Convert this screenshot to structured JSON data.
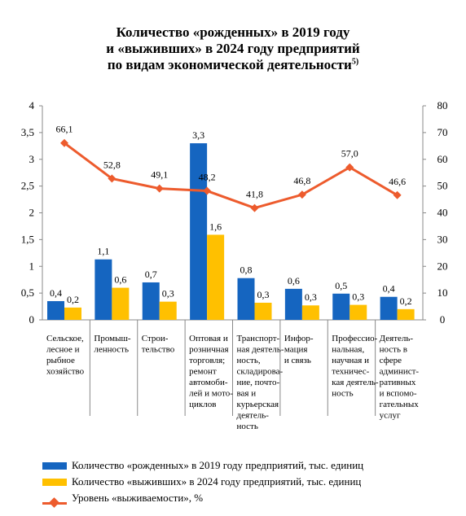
{
  "title": {
    "line1": "Количество «рожденных» в 2019 году",
    "line2": "и «выживших» в 2024 году предприятий",
    "line3": "по видам экономической деятельности",
    "footnote": "5)"
  },
  "chart_data": {
    "type": "bar",
    "categories": [
      [
        "Сельское,",
        "лесное и",
        "рыбное",
        "хозяйство"
      ],
      [
        "Промыш-",
        "ленность"
      ],
      [
        "Строи-",
        "тельство"
      ],
      [
        "Оптовая и",
        "розничная",
        "торговля;",
        "ремонт",
        "автомоби-",
        "лей и мото-",
        "циклов"
      ],
      [
        "Транспорт-",
        "ная деятель-",
        "ность,",
        "складирова-",
        "ние, почто-",
        "вая и",
        "курьерская",
        "деятель-",
        "ность"
      ],
      [
        "Инфор-",
        "мация",
        "и связь"
      ],
      [
        "Профессио-",
        "нальная,",
        "научная и",
        "техничес-",
        "кая деятель-",
        "ность"
      ],
      [
        "Деятель-",
        "ность в",
        "сфере",
        "админист-",
        "ративных",
        "и вспомо-",
        "гательных",
        "услуг"
      ]
    ],
    "series": [
      {
        "name": "Количество «рожденных» в 2019 году предприятий, тыс. единиц",
        "kind": "bar",
        "axis": "left",
        "color": "#1565c0",
        "values": [
          0.35,
          1.13,
          0.7,
          3.3,
          0.78,
          0.58,
          0.49,
          0.43
        ],
        "labels": [
          "0,4",
          "1,1",
          "0,7",
          "3,3",
          "0,8",
          "0,6",
          "0,5",
          "0,4"
        ]
      },
      {
        "name": "Количество «выживших» в 2024 году предприятий, тыс. единиц",
        "kind": "bar",
        "axis": "left",
        "color": "#ffc000",
        "values": [
          0.23,
          0.6,
          0.34,
          1.59,
          0.32,
          0.27,
          0.28,
          0.2
        ],
        "labels": [
          "0,2",
          "0,6",
          "0,3",
          "1,6",
          "0,3",
          "0,3",
          "0,3",
          "0,2"
        ]
      },
      {
        "name": "Уровень «выживаемости», %",
        "kind": "line",
        "axis": "right",
        "color": "#ed5b2d",
        "values": [
          66.1,
          52.8,
          49.1,
          48.2,
          41.8,
          46.8,
          57.0,
          46.6
        ],
        "labels": [
          "66,1",
          "52,8",
          "49,1",
          "48,2",
          "41,8",
          "46,8",
          "57,0",
          "46,6"
        ]
      }
    ],
    "y_left": {
      "min": 0,
      "max": 4,
      "ticks": [
        "0",
        "0,5",
        "1",
        "1,5",
        "2",
        "2,5",
        "3",
        "3,5",
        "4"
      ]
    },
    "y_right": {
      "min": 0,
      "max": 80,
      "ticks": [
        "0",
        "10",
        "20",
        "30",
        "40",
        "50",
        "60",
        "70",
        "80"
      ]
    },
    "grid": false,
    "legend_position": "bottom-left"
  }
}
